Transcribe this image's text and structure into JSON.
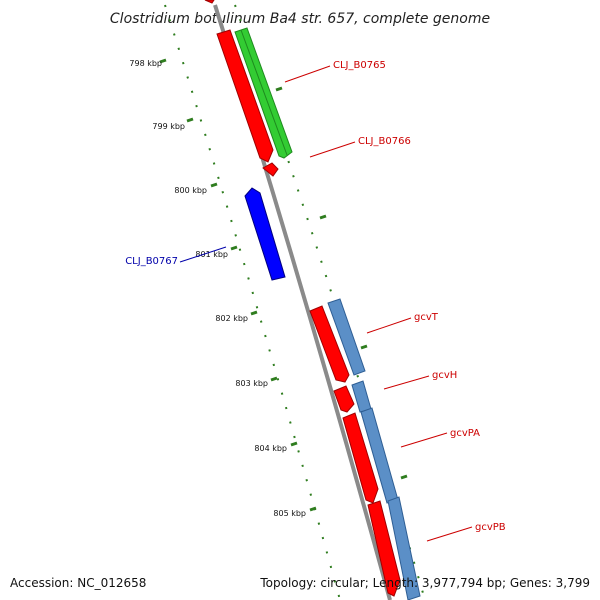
{
  "title": "Clostridium botulinum Ba4 str. 657, complete genome",
  "footer": {
    "accession": "Accession: NC_012658",
    "topology": "Topology: circular; Length: 3,977,794 bp; Genes: 3,799"
  },
  "colors": {
    "backbone": "#8a8a8a",
    "tick": "#2f7d1f",
    "cds_forward": "#ff0000",
    "cds_reverse": "#0000ff",
    "gene_green": "#33cc33",
    "gene_steelblue": "#5b8fc7",
    "label_red": "#cc0000",
    "label_blue": "#0000aa"
  },
  "ticks": [
    {
      "label": "798 kbp"
    },
    {
      "label": "799 kbp"
    },
    {
      "label": "800 kbp"
    },
    {
      "label": "801 kbp"
    },
    {
      "label": "802 kbp"
    },
    {
      "label": "803 kbp"
    },
    {
      "label": "804 kbp"
    },
    {
      "label": "805 kbp"
    }
  ],
  "genes": [
    {
      "label": "CLJ_B0765",
      "color": "label_red"
    },
    {
      "label": "CLJ_B0766",
      "color": "label_red"
    },
    {
      "label": "CLJ_B0767",
      "color": "label_blue"
    },
    {
      "label": "gcvT",
      "color": "label_red"
    },
    {
      "label": "gcvH",
      "color": "label_red"
    },
    {
      "label": "gcvPA",
      "color": "label_red"
    },
    {
      "label": "gcvPB",
      "color": "label_red"
    }
  ]
}
